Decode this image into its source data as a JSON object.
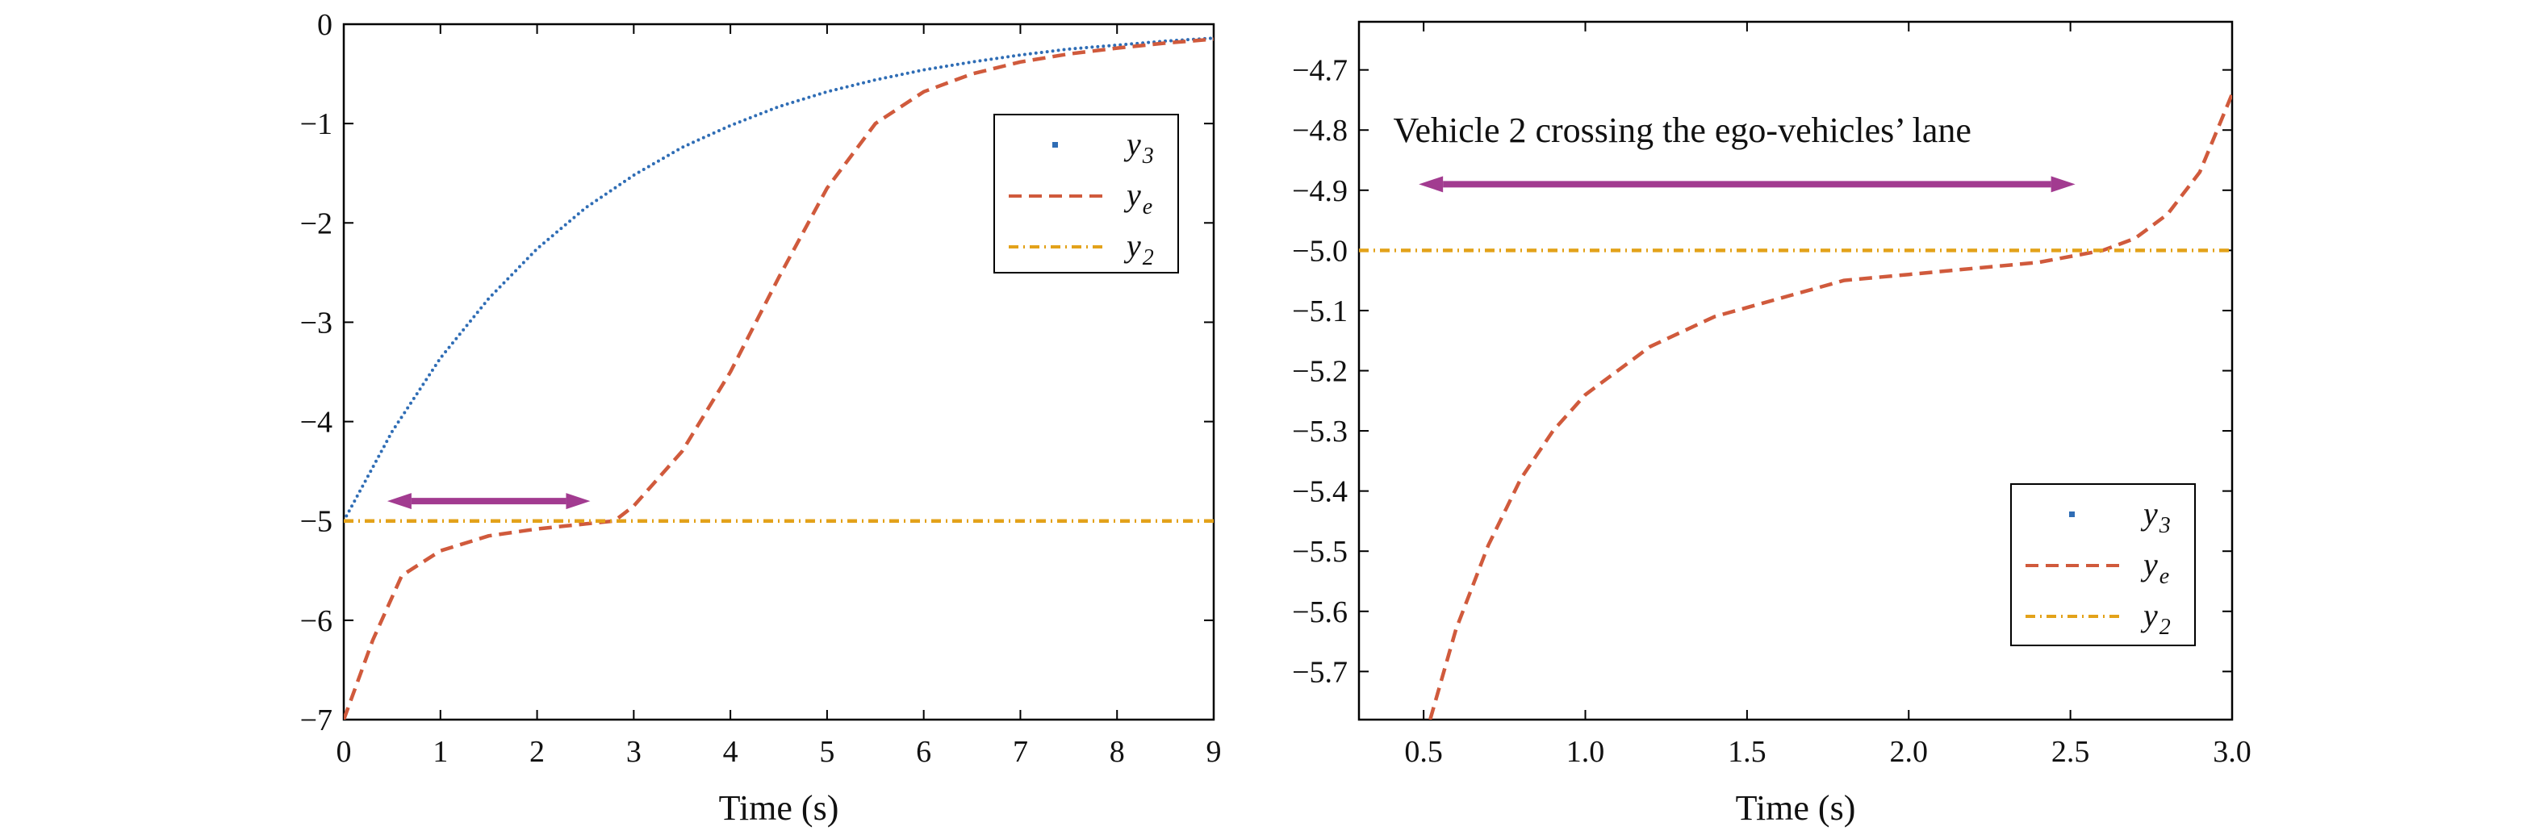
{
  "chart_data": [
    {
      "type": "line",
      "xlabel": "Time (s)",
      "xlim": [
        0,
        9
      ],
      "ylim": [
        -7,
        0
      ],
      "xticks": [
        "0",
        "1",
        "2",
        "3",
        "4",
        "5",
        "6",
        "7",
        "8",
        "9"
      ],
      "yticks": [
        "0",
        "−1",
        "−2",
        "−3",
        "−4",
        "−5",
        "−6",
        "−7"
      ],
      "legend_position": "upper-right",
      "series": [
        {
          "name": "y3",
          "legend_main": "y",
          "legend_sub": "3",
          "style": "dotted",
          "color": "#2f6db5",
          "x": [
            0,
            0.5,
            1,
            1.5,
            2,
            2.5,
            3,
            3.5,
            4,
            4.5,
            5,
            5.5,
            6,
            6.5,
            7,
            7.5,
            8,
            8.5,
            9
          ],
          "y": [
            -5.0,
            -4.1,
            -3.36,
            -2.76,
            -2.26,
            -1.85,
            -1.52,
            -1.24,
            -1.02,
            -0.83,
            -0.68,
            -0.56,
            -0.46,
            -0.38,
            -0.31,
            -0.25,
            -0.21,
            -0.17,
            -0.14
          ]
        },
        {
          "name": "ye",
          "legend_main": "y",
          "legend_sub": "e",
          "style": "dashed",
          "color": "#d05a3c",
          "x": [
            0,
            0.3,
            0.6,
            1,
            1.5,
            2,
            2.5,
            2.8,
            3,
            3.5,
            4,
            4.5,
            5,
            5.5,
            6,
            6.5,
            7,
            7.5,
            8,
            8.5,
            9
          ],
          "y": [
            -7.0,
            -6.2,
            -5.55,
            -5.3,
            -5.15,
            -5.08,
            -5.03,
            -5.0,
            -4.85,
            -4.3,
            -3.5,
            -2.55,
            -1.65,
            -1.0,
            -0.68,
            -0.5,
            -0.38,
            -0.3,
            -0.24,
            -0.19,
            -0.15
          ]
        },
        {
          "name": "y2",
          "legend_main": "y",
          "legend_sub": "2",
          "style": "dashdot",
          "color": "#e3a21a",
          "x": [
            0,
            9
          ],
          "y": [
            -5.0,
            -5.0
          ]
        }
      ],
      "annotations": [
        {
          "type": "double-arrow",
          "x_start": 0.5,
          "x_end": 2.5,
          "y": -4.8,
          "color": "#a23b90"
        }
      ]
    },
    {
      "type": "line",
      "xlabel": "Time (s)",
      "xlim": [
        0.3,
        3.0
      ],
      "ylim": [
        -5.78,
        -4.62
      ],
      "xticks": [
        "0.5",
        "1.0",
        "1.5",
        "2.0",
        "2.5",
        "3.0"
      ],
      "yticks": [
        "−4.7",
        "−4.8",
        "−4.9",
        "−5.0",
        "−5.1",
        "−5.2",
        "−5.3",
        "−5.4",
        "−5.5",
        "−5.6",
        "−5.7"
      ],
      "legend_position": "lower-right",
      "series": [
        {
          "name": "y3",
          "legend_main": "y",
          "legend_sub": "3",
          "style": "dotted",
          "color": "#2f6db5",
          "x": [],
          "y": []
        },
        {
          "name": "ye",
          "legend_main": "y",
          "legend_sub": "e",
          "style": "dashed",
          "color": "#d05a3c",
          "x": [
            0.52,
            0.6,
            0.7,
            0.8,
            0.9,
            1.0,
            1.2,
            1.4,
            1.6,
            1.8,
            2.0,
            2.2,
            2.4,
            2.6,
            2.7,
            2.8,
            2.9,
            3.0
          ],
          "y": [
            -5.78,
            -5.63,
            -5.49,
            -5.38,
            -5.3,
            -5.24,
            -5.16,
            -5.11,
            -5.08,
            -5.05,
            -5.04,
            -5.03,
            -5.02,
            -5.0,
            -4.98,
            -4.94,
            -4.87,
            -4.74
          ]
        },
        {
          "name": "y2",
          "legend_main": "y",
          "legend_sub": "2",
          "style": "dashdot",
          "color": "#e3a21a",
          "x": [
            0.3,
            3.0
          ],
          "y": [
            -5.0,
            -5.0
          ]
        }
      ],
      "annotations": [
        {
          "type": "double-arrow",
          "x_start": 0.5,
          "x_end": 2.5,
          "y": -4.89,
          "color": "#a23b90"
        },
        {
          "type": "text",
          "text": "Vehicle 2 crossing the ego-vehicles’ lane",
          "x": 1.3,
          "y": -4.82
        }
      ]
    }
  ]
}
